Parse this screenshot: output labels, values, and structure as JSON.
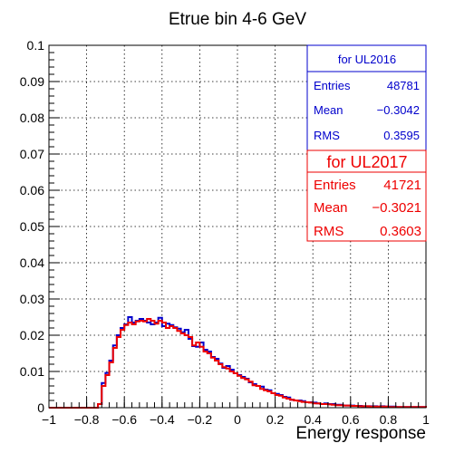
{
  "chart_data": {
    "type": "histogram",
    "title": "Etrue bin 4-6 GeV",
    "xlabel": "Energy response",
    "ylabel": "",
    "xlim": [
      -1,
      1
    ],
    "ylim": [
      0,
      0.1
    ],
    "grid": true,
    "xticks": [
      "−1",
      "−0.8",
      "−0.6",
      "−0.4",
      "−0.2",
      "0",
      "0.2",
      "0.4",
      "0.6",
      "0.8",
      "1"
    ],
    "yticks": [
      "0",
      "0.01",
      "0.02",
      "0.03",
      "0.04",
      "0.05",
      "0.06",
      "0.07",
      "0.08",
      "0.09",
      "0.1"
    ],
    "bin_edges_start": -1.0,
    "bin_width": 0.02,
    "series": [
      {
        "color": "#0000cc",
        "values": [
          0,
          0,
          0,
          0,
          0,
          0,
          0,
          0,
          0,
          0,
          0,
          0,
          0,
          0.001,
          0.0068,
          0.0096,
          0.013,
          0.0172,
          0.02,
          0.022,
          0.023,
          0.025,
          0.0235,
          0.024,
          0.0245,
          0.024,
          0.0235,
          0.023,
          0.0235,
          0.0248,
          0.0225,
          0.0232,
          0.0228,
          0.0222,
          0.0218,
          0.0208,
          0.0215,
          0.019,
          0.017,
          0.0168,
          0.018,
          0.016,
          0.0155,
          0.014,
          0.0135,
          0.0122,
          0.011,
          0.0115,
          0.0105,
          0.0095,
          0.009,
          0.0085,
          0.008,
          0.007,
          0.0065,
          0.006,
          0.0058,
          0.005,
          0.0048,
          0.004,
          0.0038,
          0.0035,
          0.003,
          0.0028,
          0.0022,
          0.002,
          0.002,
          0.0018,
          0.0015,
          0.0015,
          0.0014,
          0.0012,
          0.001,
          0.0012,
          0.001,
          0.001,
          0.0008,
          0.0008,
          0.0006,
          0.0006,
          0.0006,
          0.0005,
          0.0005,
          0.0004,
          0.0004,
          0.0004,
          0.0004,
          0.0003,
          0.0004,
          0.0003,
          0.0003,
          0.0003,
          0.0002,
          0.0002,
          0.0002,
          0.0002,
          0.0002,
          0.0002,
          0.0002,
          0.0002
        ]
      },
      {
        "color": "#ee0000",
        "values": [
          0,
          0,
          0,
          0,
          0,
          0,
          0,
          0,
          0,
          0,
          0,
          0,
          0,
          0.001,
          0.006,
          0.009,
          0.0125,
          0.0165,
          0.0195,
          0.0215,
          0.0228,
          0.0235,
          0.023,
          0.0238,
          0.024,
          0.0238,
          0.0245,
          0.024,
          0.0232,
          0.024,
          0.0235,
          0.022,
          0.0225,
          0.022,
          0.0212,
          0.0205,
          0.02,
          0.0195,
          0.0172,
          0.018,
          0.0168,
          0.0155,
          0.015,
          0.0138,
          0.013,
          0.012,
          0.0112,
          0.0108,
          0.01,
          0.0095,
          0.0088,
          0.0082,
          0.0078,
          0.0072,
          0.0062,
          0.006,
          0.0052,
          0.0048,
          0.0045,
          0.004,
          0.0035,
          0.0033,
          0.0028,
          0.0025,
          0.0022,
          0.002,
          0.0018,
          0.0016,
          0.0015,
          0.0014,
          0.0012,
          0.0012,
          0.001,
          0.001,
          0.0009,
          0.0008,
          0.0007,
          0.0007,
          0.0006,
          0.0006,
          0.0005,
          0.0005,
          0.0004,
          0.0004,
          0.0004,
          0.0003,
          0.0003,
          0.0003,
          0.0003,
          0.0003,
          0.0002,
          0.0002,
          0.0002,
          0.0002,
          0.0002,
          0.0002,
          0.0002,
          0.0002,
          0.0002,
          0.0002
        ]
      }
    ],
    "stats_boxes": [
      {
        "title": "for UL2016",
        "color": "#0000cc",
        "rows": [
          {
            "label": "Entries",
            "value": "48781"
          },
          {
            "label": "Mean",
            "value": "−0.3042"
          },
          {
            "label": "RMS",
            "value": "0.3595"
          }
        ]
      },
      {
        "title": "for UL2017",
        "color": "#ee0000",
        "rows": [
          {
            "label": "Entries",
            "value": "41721"
          },
          {
            "label": "Mean",
            "value": "−0.3021"
          },
          {
            "label": "RMS",
            "value": "0.3603"
          }
        ]
      }
    ]
  }
}
